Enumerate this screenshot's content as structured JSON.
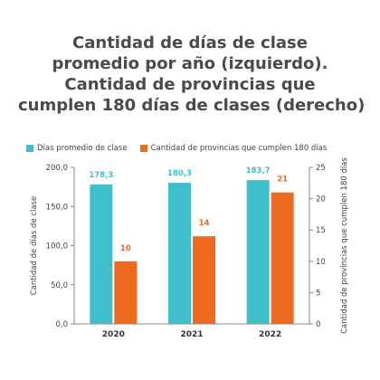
{
  "title_lines": [
    "Cantidad de días de clase",
    "promedio por año (izquierdo).",
    "Cantidad de provincias que",
    "cumplen 180 días de clases (derecho)"
  ],
  "colors": {
    "series1": "#3fbfcc",
    "series2": "#ee6a1f",
    "axis": "#888888",
    "text": "#444444"
  },
  "chart_data": {
    "type": "bar",
    "categories": [
      "2020",
      "2021",
      "2022"
    ],
    "series": [
      {
        "name": "Días promedio de clase",
        "axis": "left",
        "values": [
          178.3,
          180.3,
          183.7
        ],
        "labels": [
          "178,3",
          "180,3",
          "183,7"
        ]
      },
      {
        "name": "Cantidad de provincias que cumplen 180 días",
        "axis": "right",
        "values": [
          10,
          14,
          21
        ],
        "labels": [
          "10",
          "14",
          "21"
        ]
      }
    ],
    "ylabel_left": "Cantidad de días de clase",
    "ylabel_right": "Cantidad de provincias que cumplen 180 días",
    "ylim_left": [
      0,
      200
    ],
    "ylim_right": [
      0,
      25
    ],
    "yticks_left": [
      "0,0",
      "50,0",
      "100,0",
      "150,0",
      "200,0"
    ],
    "yticks_right": [
      "0",
      "5",
      "10",
      "15",
      "20",
      "25"
    ],
    "grid": false,
    "legend_position": "top-left"
  }
}
